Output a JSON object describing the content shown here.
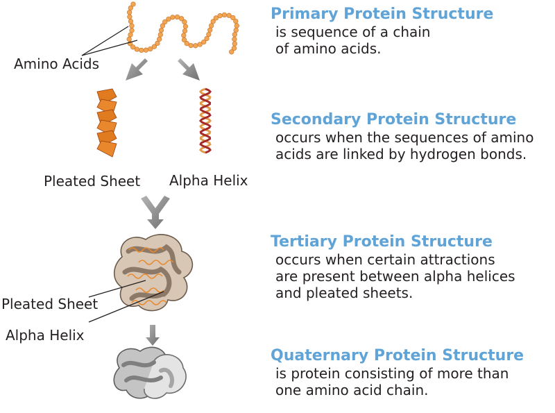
{
  "labels": {
    "amino_acids": "Amino Acids",
    "pleated_sheet_top": "Pleated Sheet",
    "alpha_helix_top": "Alpha Helix",
    "pleated_sheet_bottom": "Pleated Sheet",
    "alpha_helix_bottom": "Alpha Helix"
  },
  "stages": [
    {
      "title": "Primary Protein Structure",
      "lines": [
        "is sequence of a chain",
        "of amino acids."
      ]
    },
    {
      "title": "Secondary Protein Structure",
      "lines": [
        "occurs when the sequences of amino",
        "acids are linked by hydrogen bonds."
      ]
    },
    {
      "title": "Tertiary Protein Structure",
      "lines": [
        "occurs when certain attractions",
        "are present between alpha helices",
        "and pleated sheets."
      ]
    },
    {
      "title": "Quaternary Protein Structure",
      "lines": [
        "is protein consisting of more than",
        "one amino acid chain."
      ]
    }
  ],
  "colors": {
    "title_blue": "#5fa3d7",
    "bead_orange": "#f2a553",
    "sheet_orange": "#e07b1f",
    "helix_red": "#a52a2a",
    "arrow_gray": "#8a8a8a",
    "tertiary_fill": "#d8c7b5",
    "quaternary_fill": "#bdbdbd"
  }
}
